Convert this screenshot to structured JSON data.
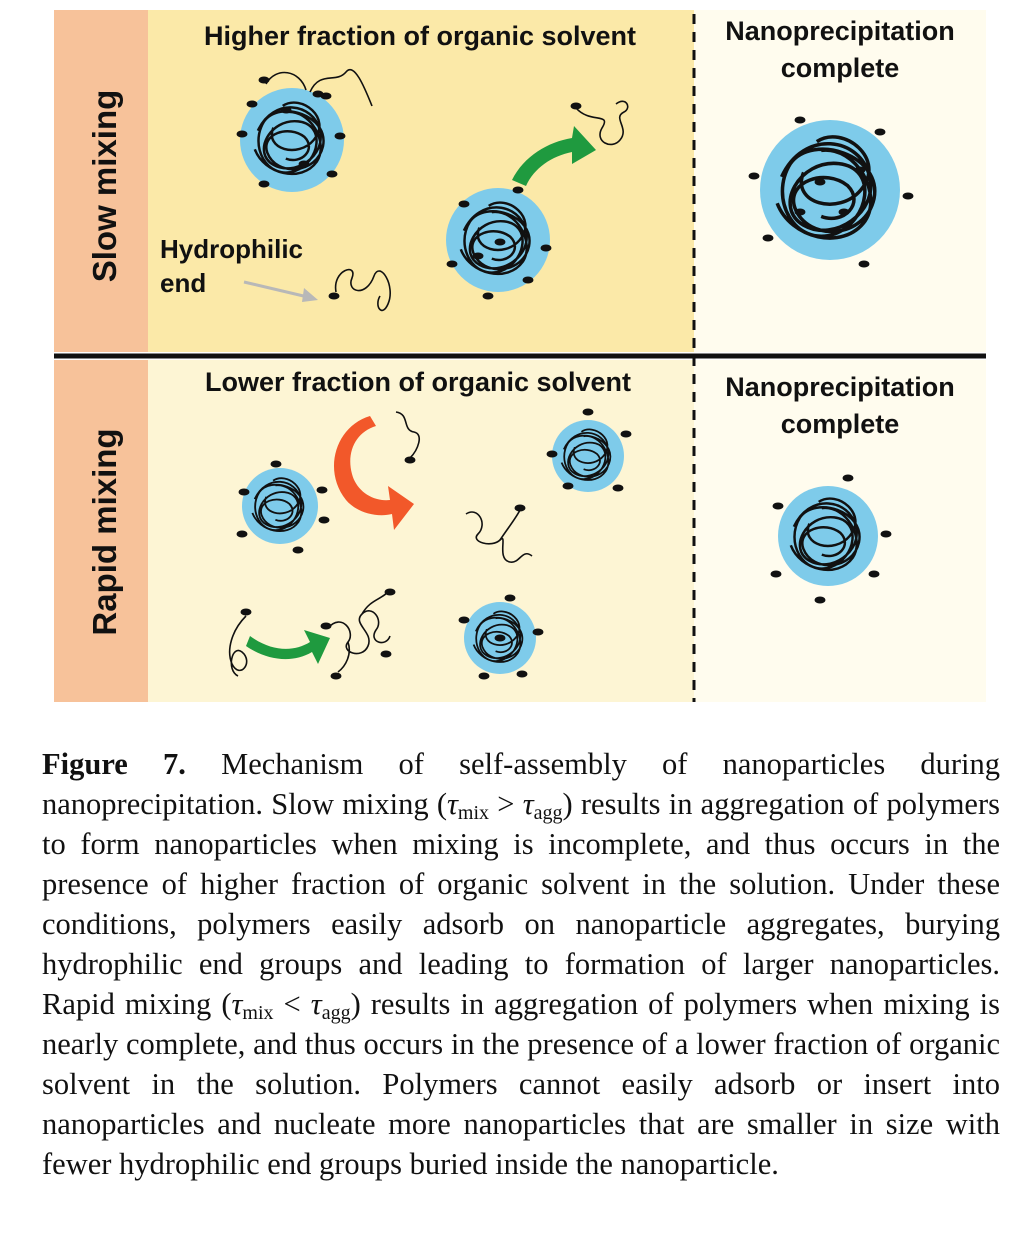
{
  "figure": {
    "colors": {
      "sidebar": "#f7c29a",
      "top_left_panel": "#fbe9a8",
      "bottom_left_panel": "#fdf5d4",
      "right_panel": "#fffcee",
      "nanoparticle": "#7ecbea",
      "green_arrow": "#1f9a3f",
      "orange_arrow": "#f2582a",
      "divider": "#111111"
    },
    "top_row": {
      "side_label": "Slow mixing",
      "heading_left": "Higher fraction of organic solvent",
      "heading_right_line1": "Nanoprecipitation",
      "heading_right_line2": "complete",
      "hydrophilic_label_line1": "Hydrophilic",
      "hydrophilic_label_line2": "end"
    },
    "bottom_row": {
      "side_label": "Rapid mixing",
      "heading_left": "Lower fraction of organic solvent",
      "heading_right_line1": "Nanoprecipitation",
      "heading_right_line2": "complete"
    }
  },
  "caption": {
    "label": "Figure 7.",
    "text_1": " Mechanism of self-assembly of nanoparticles during nanoprecipitation. Slow mixing (",
    "tau": "τ",
    "sub_mix": "mix",
    "gt": " > ",
    "sub_agg": "agg",
    "text_2": ") results in aggregation of polymers to form nanoparticles when mixing is incomplete, and thus occurs in the presence of higher fraction of organic solvent in the solution. Under these conditions, polymers easily adsorb on nanoparticle aggregates, burying hydrophilic end groups and leading to formation of larger nanoparticles. Rapid mixing (",
    "lt": " < ",
    "text_3": ") results in aggregation of polymers when mixing is nearly complete, and thus occurs in the presence of a lower fraction of organic solvent in the solution. Polymers cannot easily adsorb or insert into nanoparticles and nucleate more nanoparticles that are smaller in size with fewer hydrophilic end groups buried inside the nanoparticle."
  }
}
